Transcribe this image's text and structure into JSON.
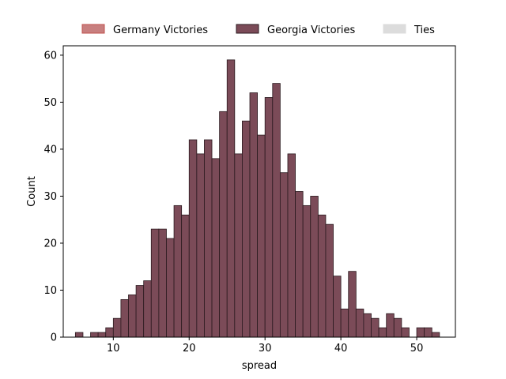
{
  "chart_data": {
    "type": "bar",
    "subtype": "histogram",
    "xlabel": "spread",
    "ylabel": "Count",
    "xlim": [
      3.4,
      55.1
    ],
    "ylim": [
      0,
      62
    ],
    "xticks": [
      10,
      20,
      30,
      40,
      50
    ],
    "yticks": [
      0,
      10,
      20,
      30,
      40,
      50,
      60
    ],
    "bin_width": 1,
    "bin_starts": [
      5,
      7,
      8,
      9,
      10,
      11,
      12,
      13,
      14,
      15,
      16,
      17,
      18,
      19,
      20,
      21,
      22,
      23,
      24,
      25,
      26,
      27,
      28,
      29,
      30,
      31,
      32,
      33,
      34,
      35,
      36,
      37,
      38,
      39,
      40,
      41,
      42,
      43,
      44,
      45,
      46,
      47,
      48,
      50,
      51,
      52
    ],
    "series": [
      {
        "name": "Germany Victories",
        "color": "#c87f7f",
        "edge": "#c0504d",
        "values": [
          0,
          0,
          0,
          0,
          0,
          0,
          0,
          0,
          0,
          0,
          0,
          0,
          0,
          0,
          0,
          0,
          0,
          0,
          0,
          0,
          0,
          0,
          0,
          0,
          0,
          0,
          0,
          0,
          0,
          0,
          0,
          0,
          0,
          0,
          0,
          0,
          0,
          0,
          0,
          0,
          0,
          0,
          0,
          0,
          0,
          0
        ]
      },
      {
        "name": "Georgia Victories",
        "color": "#7b4b58",
        "edge": "#2b1a1f",
        "values": [
          1,
          1,
          1,
          2,
          4,
          8,
          9,
          11,
          12,
          23,
          23,
          21,
          28,
          26,
          42,
          39,
          42,
          38,
          48,
          59,
          39,
          46,
          52,
          43,
          51,
          54,
          35,
          39,
          31,
          28,
          30,
          26,
          24,
          13,
          6,
          14,
          6,
          5,
          4,
          2,
          5,
          4,
          2,
          2,
          2,
          1
        ]
      },
      {
        "name": "Ties",
        "color": "#dcdcdc",
        "edge": "#dcdcdc",
        "values": [
          0,
          0,
          0,
          0,
          0,
          0,
          0,
          0,
          0,
          0,
          0,
          0,
          0,
          0,
          0,
          0,
          0,
          0,
          0,
          0,
          0,
          0,
          0,
          0,
          0,
          0,
          0,
          0,
          0,
          0,
          0,
          0,
          0,
          0,
          0,
          0,
          0,
          0,
          0,
          0,
          0,
          0,
          0,
          0,
          0,
          0
        ]
      }
    ],
    "legend_position": "top-center-outside",
    "grid": false
  }
}
